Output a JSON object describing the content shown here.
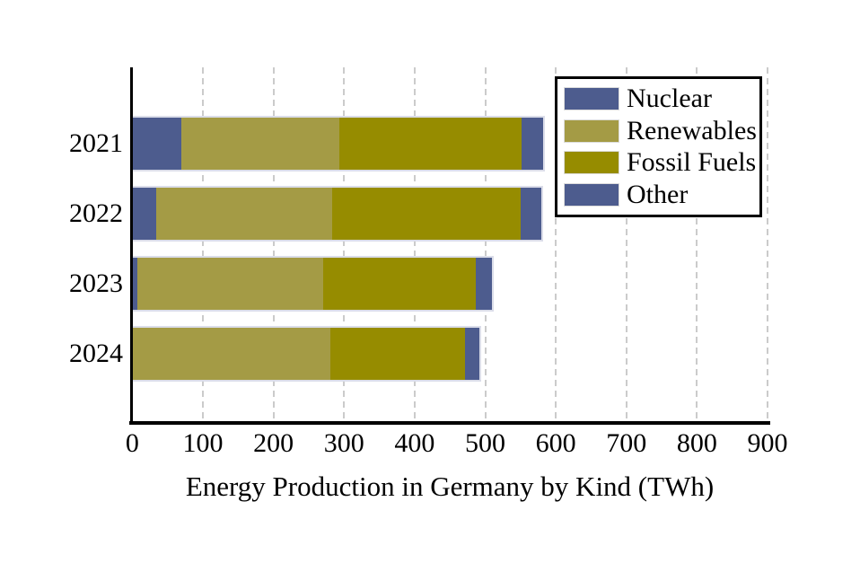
{
  "figure": {
    "background_color": "#ffffff",
    "text_color": "#000000"
  },
  "chart_data": {
    "type": "bar",
    "orientation": "horizontal",
    "stacked": true,
    "title": "Energy Production in Germany by Kind (TWh)",
    "categories": [
      "2021",
      "2022",
      "2023",
      "2024"
    ],
    "series": [
      {
        "name": "Nuclear",
        "color": "#4d5c8e",
        "values": [
          69,
          34,
          7,
          0
        ]
      },
      {
        "name": "Renewables",
        "color": "#a49b45",
        "values": [
          224,
          249,
          263,
          280
        ]
      },
      {
        "name": "Fossil Fuels",
        "color": "#968c00",
        "values": [
          259,
          267,
          217,
          192
        ]
      },
      {
        "name": "Other",
        "color": "#4d5c8e",
        "values": [
          30,
          30,
          22,
          20
        ]
      }
    ],
    "totals": [
      582,
      580,
      509,
      492
    ],
    "xlim": [
      0,
      900
    ],
    "xticks": [
      0,
      100,
      200,
      300,
      400,
      500,
      600,
      700,
      800,
      900
    ],
    "grid": "vertical-dashed",
    "grid_color": "#cbcbcb",
    "bar_edge_color": "#dbdde9",
    "axis_color": "#000000",
    "legend_position": "upper-right"
  }
}
